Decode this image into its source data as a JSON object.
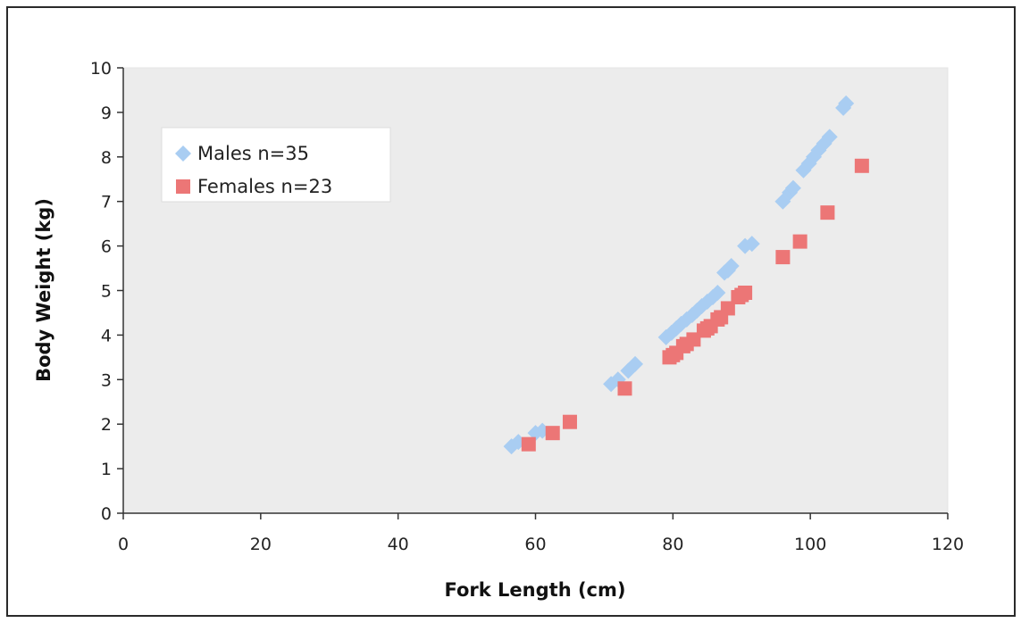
{
  "chart_data": {
    "type": "scatter",
    "title": "",
    "xlabel": "Fork Length (cm)",
    "ylabel": "Body Weight (kg)",
    "xlim": [
      0,
      120
    ],
    "ylim": [
      0,
      10
    ],
    "xticks": [
      "0",
      "20",
      "40",
      "60",
      "80",
      "100",
      "120"
    ],
    "yticks": [
      "0",
      "1",
      "2",
      "3",
      "4",
      "5",
      "6",
      "7",
      "8",
      "9",
      "10"
    ],
    "grid": false,
    "legend_position": "upper-left",
    "series": [
      {
        "name": "Males n=35",
        "marker": "diamond",
        "color": "#a9cdf2",
        "points": [
          [
            56.5,
            1.5
          ],
          [
            57.5,
            1.6
          ],
          [
            60,
            1.8
          ],
          [
            71,
            2.9
          ],
          [
            73.5,
            3.2
          ],
          [
            74.5,
            3.35
          ],
          [
            79,
            3.95
          ],
          [
            79.8,
            4.05
          ],
          [
            80.5,
            4.15
          ],
          [
            81.2,
            4.25
          ],
          [
            82,
            4.35
          ],
          [
            82.8,
            4.45
          ],
          [
            83.5,
            4.55
          ],
          [
            84.2,
            4.65
          ],
          [
            85,
            4.75
          ],
          [
            85.8,
            4.85
          ],
          [
            86.5,
            4.95
          ],
          [
            88,
            5.45
          ],
          [
            88.5,
            5.55
          ],
          [
            91.5,
            6.05
          ],
          [
            96,
            7.0
          ],
          [
            97,
            7.2
          ],
          [
            97.5,
            7.3
          ],
          [
            99,
            7.7
          ],
          [
            99.8,
            7.85
          ],
          [
            100.5,
            8.0
          ],
          [
            101.2,
            8.15
          ],
          [
            102,
            8.3
          ],
          [
            102.8,
            8.45
          ],
          [
            104.8,
            9.1
          ],
          [
            105.2,
            9.2
          ],
          [
            61,
            1.85
          ],
          [
            72,
            3.0
          ],
          [
            87.5,
            5.4
          ],
          [
            90.5,
            6.0
          ]
        ]
      },
      {
        "name": "Females n=23",
        "marker": "square",
        "color": "#ec7676",
        "points": [
          [
            59,
            1.55
          ],
          [
            62.5,
            1.8
          ],
          [
            65,
            2.05
          ],
          [
            73,
            2.8
          ],
          [
            79.5,
            3.5
          ],
          [
            80.5,
            3.6
          ],
          [
            81.5,
            3.75
          ],
          [
            83,
            3.9
          ],
          [
            84.5,
            4.1
          ],
          [
            85.5,
            4.2
          ],
          [
            86.5,
            4.35
          ],
          [
            88,
            4.6
          ],
          [
            89.5,
            4.85
          ],
          [
            90.5,
            4.95
          ],
          [
            96,
            5.75
          ],
          [
            98.5,
            6.1
          ],
          [
            102.5,
            6.75
          ],
          [
            107.5,
            7.8
          ],
          [
            82,
            3.8
          ],
          [
            85,
            4.15
          ],
          [
            87,
            4.4
          ],
          [
            90,
            4.9
          ],
          [
            80,
            3.55
          ]
        ]
      }
    ]
  }
}
